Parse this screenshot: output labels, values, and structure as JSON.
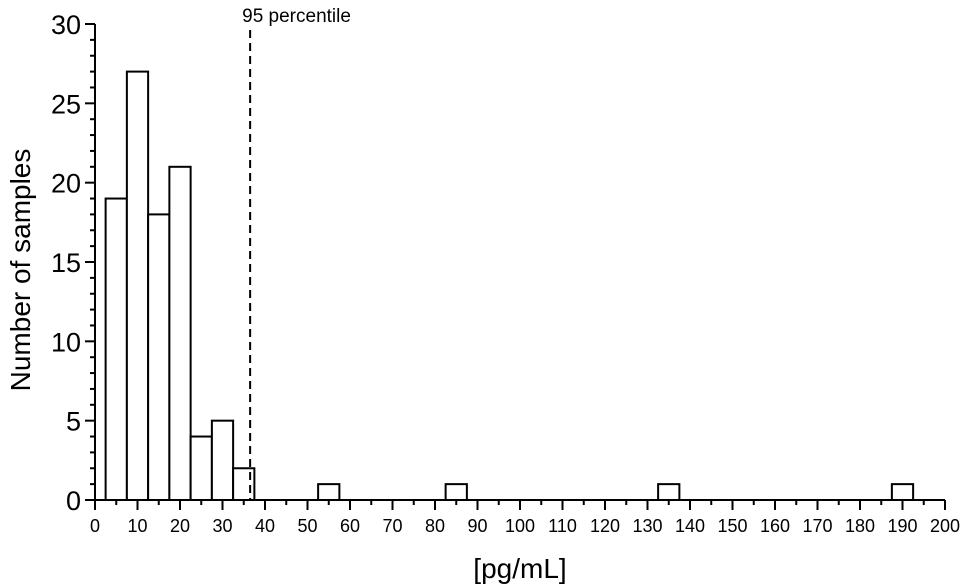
{
  "chart_data": {
    "type": "bar",
    "xlabel": "[pg/mL]",
    "ylabel": "Number of samples",
    "xlim": [
      0,
      200
    ],
    "ylim": [
      0,
      30
    ],
    "x_ticks": [
      0,
      10,
      20,
      30,
      40,
      50,
      60,
      70,
      80,
      90,
      100,
      110,
      120,
      130,
      140,
      150,
      160,
      170,
      180,
      190,
      200
    ],
    "y_ticks": [
      0,
      5,
      10,
      15,
      20,
      25,
      30
    ],
    "bin_width": 5,
    "bins": [
      {
        "start": 2.5,
        "end": 7.5,
        "count": 19
      },
      {
        "start": 7.5,
        "end": 12.5,
        "count": 27
      },
      {
        "start": 12.5,
        "end": 17.5,
        "count": 18
      },
      {
        "start": 17.5,
        "end": 22.5,
        "count": 21
      },
      {
        "start": 22.5,
        "end": 27.5,
        "count": 4
      },
      {
        "start": 27.5,
        "end": 32.5,
        "count": 5
      },
      {
        "start": 32.5,
        "end": 37.5,
        "count": 2
      },
      {
        "start": 52.5,
        "end": 57.5,
        "count": 1
      },
      {
        "start": 82.5,
        "end": 87.5,
        "count": 1
      },
      {
        "start": 132.5,
        "end": 137.5,
        "count": 1
      },
      {
        "start": 187.5,
        "end": 192.5,
        "count": 1
      }
    ],
    "reference_line": {
      "x": 36.5,
      "label": "95 percentile",
      "style": "dashed"
    },
    "grid": false,
    "legend": "none"
  }
}
